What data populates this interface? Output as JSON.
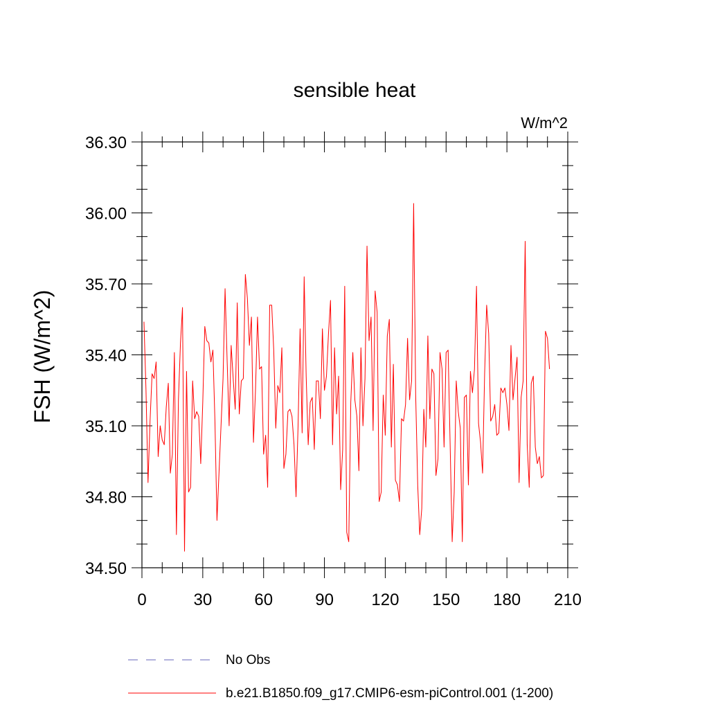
{
  "chart_data": {
    "type": "line",
    "title": "sensible heat",
    "units_label": "W/m^2",
    "xlabel": "",
    "ylabel": "FSH  (W/m^2)",
    "xlim": [
      0,
      210
    ],
    "ylim": [
      34.5,
      36.3
    ],
    "xticks": [
      0,
      30,
      60,
      90,
      120,
      150,
      180,
      210
    ],
    "yticks": [
      34.5,
      34.8,
      35.1,
      35.4,
      35.7,
      36.0,
      36.3
    ],
    "xtick_labels": [
      "0",
      "30",
      "60",
      "90",
      "120",
      "150",
      "180",
      "210"
    ],
    "ytick_labels": [
      "34.50",
      "34.80",
      "35.10",
      "35.40",
      "35.70",
      "36.00",
      "36.30"
    ],
    "grid": false,
    "legend_position": "bottom",
    "legend": [
      {
        "label": "No Obs",
        "color": "#6666bb",
        "style": "dashed"
      },
      {
        "label": "b.e21.B1850.f09_g17.CMIP6-esm-piControl.001 (1-200)",
        "color": "#ff0000",
        "style": "solid"
      }
    ],
    "series": [
      {
        "name": "b.e21.B1850.f09_g17.CMIP6-esm-piControl.001 (1-200)",
        "color": "#ff0000",
        "x_start": 1,
        "x_step": 1,
        "values": [
          35.54,
          35.25,
          34.86,
          35.12,
          35.32,
          35.3,
          35.37,
          34.97,
          35.1,
          35.04,
          35.02,
          35.18,
          35.28,
          34.9,
          34.98,
          35.41,
          34.64,
          35.21,
          35.45,
          35.6,
          34.57,
          35.33,
          34.82,
          34.84,
          35.29,
          35.13,
          35.16,
          35.14,
          34.94,
          35.2,
          35.52,
          35.46,
          35.45,
          35.37,
          35.42,
          35.12,
          34.7,
          34.9,
          35.1,
          35.3,
          35.68,
          35.38,
          35.1,
          35.44,
          35.3,
          35.17,
          35.62,
          35.15,
          35.29,
          35.3,
          35.74,
          35.64,
          35.44,
          35.56,
          35.03,
          35.25,
          35.56,
          35.34,
          35.35,
          34.98,
          35.06,
          34.84,
          35.61,
          35.61,
          35.42,
          35.09,
          35.27,
          35.24,
          35.43,
          34.92,
          34.98,
          35.16,
          35.17,
          35.14,
          35.02,
          34.8,
          35.1,
          35.51,
          35.07,
          35.73,
          35.31,
          35.02,
          35.2,
          35.22,
          35.0,
          35.29,
          35.29,
          35.13,
          35.51,
          35.25,
          35.31,
          35.49,
          35.63,
          35.02,
          35.43,
          35.15,
          35.31,
          34.83,
          35.0,
          35.69,
          34.65,
          34.61,
          35.2,
          35.41,
          35.21,
          35.14,
          34.91,
          35.43,
          35.1,
          35.3,
          35.86,
          35.46,
          35.56,
          35.08,
          35.67,
          35.58,
          34.78,
          34.82,
          35.23,
          35.06,
          35.48,
          35.55,
          35.01,
          35.36,
          34.87,
          34.85,
          34.78,
          35.13,
          35.12,
          35.19,
          35.47,
          35.21,
          35.29,
          36.04,
          35.23,
          34.85,
          34.64,
          34.75,
          35.17,
          35.01,
          35.48,
          35.13,
          35.34,
          35.32,
          34.89,
          34.96,
          35.41,
          35.34,
          35.01,
          35.41,
          35.42,
          35.02,
          34.61,
          34.82,
          35.29,
          35.16,
          35.09,
          34.61,
          35.22,
          35.23,
          34.85,
          35.33,
          35.24,
          35.34,
          35.69,
          35.11,
          35.03,
          34.9,
          35.32,
          35.61,
          35.49,
          35.12,
          35.14,
          35.19,
          35.06,
          35.07,
          35.26,
          35.24,
          35.26,
          35.19,
          35.08,
          35.44,
          35.21,
          35.3,
          35.39,
          34.86,
          35.22,
          35.29,
          35.88,
          35.02,
          34.84,
          35.28,
          35.31,
          35.01,
          34.94,
          34.97,
          34.88,
          34.89,
          35.5,
          35.47,
          35.34
        ]
      }
    ]
  }
}
